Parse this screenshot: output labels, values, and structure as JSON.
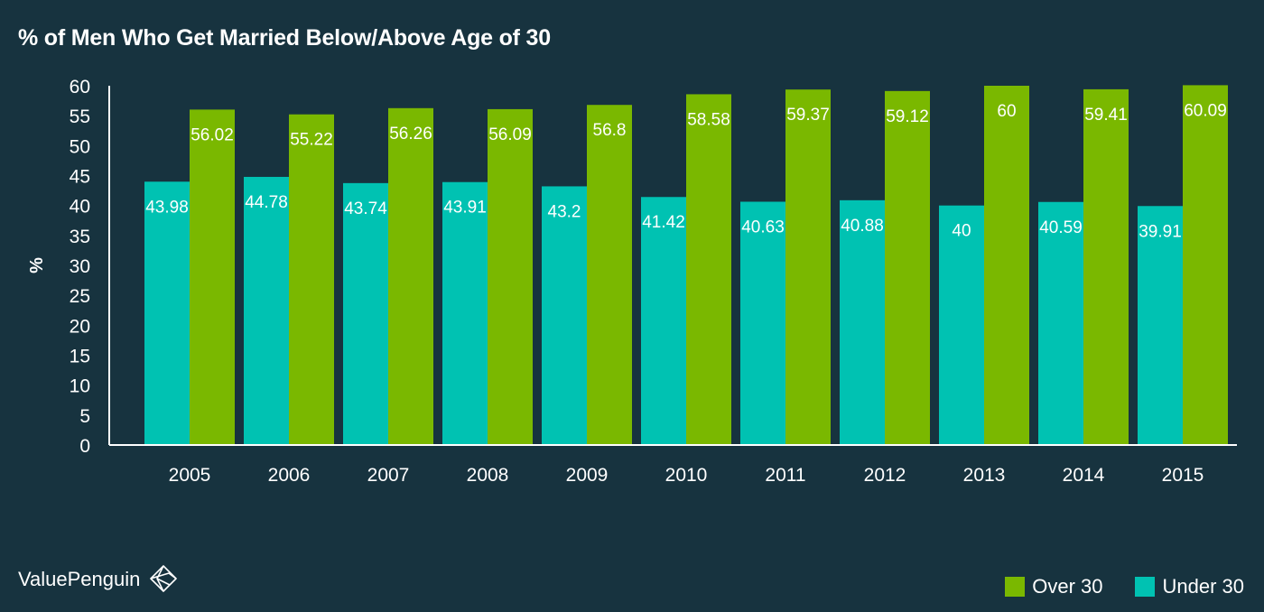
{
  "chart_data": {
    "type": "bar",
    "title": "% of Men Who Get Married Below/Above Age of 30",
    "xlabel": "",
    "ylabel": "%",
    "ylim": [
      0,
      60
    ],
    "yticks": [
      0,
      5,
      10,
      15,
      20,
      25,
      30,
      35,
      40,
      45,
      50,
      55,
      60
    ],
    "grid": false,
    "legend_position": "bottom-right",
    "categories": [
      "2005",
      "2006",
      "2007",
      "2008",
      "2009",
      "2010",
      "2011",
      "2012",
      "2013",
      "2014",
      "2015"
    ],
    "series": [
      {
        "name": "Under 30",
        "color": "#00c2b2",
        "values": [
          43.98,
          44.78,
          43.74,
          43.91,
          43.2,
          41.42,
          40.63,
          40.88,
          40,
          40.59,
          39.91
        ],
        "labels": [
          "43.98",
          "44.78",
          "43.74",
          "43.91",
          "43.2",
          "41.42",
          "40.63",
          "40.88",
          "40",
          "40.59",
          "39.91"
        ]
      },
      {
        "name": "Over 30",
        "color": "#7ab800",
        "values": [
          56.02,
          55.22,
          56.26,
          56.09,
          56.8,
          58.58,
          59.37,
          59.12,
          60,
          59.41,
          60.09
        ],
        "labels": [
          "56.02",
          "55.22",
          "56.26",
          "56.09",
          "56.8",
          "58.58",
          "59.37",
          "59.12",
          "60",
          "59.41",
          "60.09"
        ]
      }
    ]
  },
  "legend": {
    "items": [
      {
        "label": "Over 30",
        "color": "#7ab800"
      },
      {
        "label": "Under 30",
        "color": "#00c2b2"
      }
    ]
  },
  "brand": {
    "name": "ValuePenguin",
    "icon": "valuepenguin-logo-icon"
  },
  "colors": {
    "background": "#17333f",
    "axis": "#ffffff",
    "text": "#ffffff"
  }
}
